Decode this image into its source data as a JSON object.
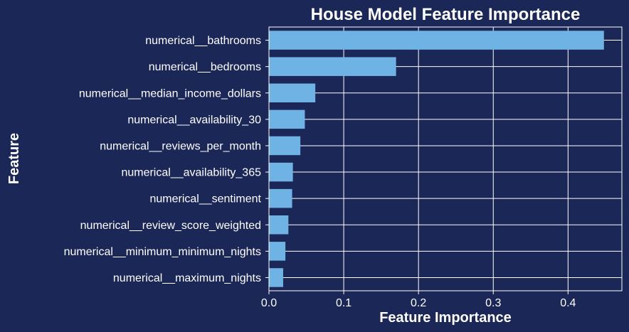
{
  "chart_data": {
    "type": "bar",
    "orientation": "horizontal",
    "title": "House Model Feature Importance",
    "xlabel": "Feature Importance",
    "ylabel": "Feature",
    "categories": [
      "numerical__bathrooms",
      "numerical__bedrooms",
      "numerical__median_income_dollars",
      "numerical__availability_30",
      "numerical__reviews_per_month",
      "numerical__availability_365",
      "numerical__sentiment",
      "numerical__review_score_weighted",
      "numerical__minimum_minimum_nights",
      "numerical__maximum_nights"
    ],
    "values": [
      0.448,
      0.17,
      0.062,
      0.048,
      0.042,
      0.032,
      0.031,
      0.026,
      0.022,
      0.019
    ],
    "xlim": [
      0,
      0.472
    ],
    "xticks": [
      "0.0",
      "0.1",
      "0.2",
      "0.3",
      "0.4"
    ],
    "grid": true,
    "colors": {
      "background": "#1b2756",
      "bar": "#6fb3e4",
      "text": "#ffffff",
      "grid": "#ffffff"
    }
  }
}
